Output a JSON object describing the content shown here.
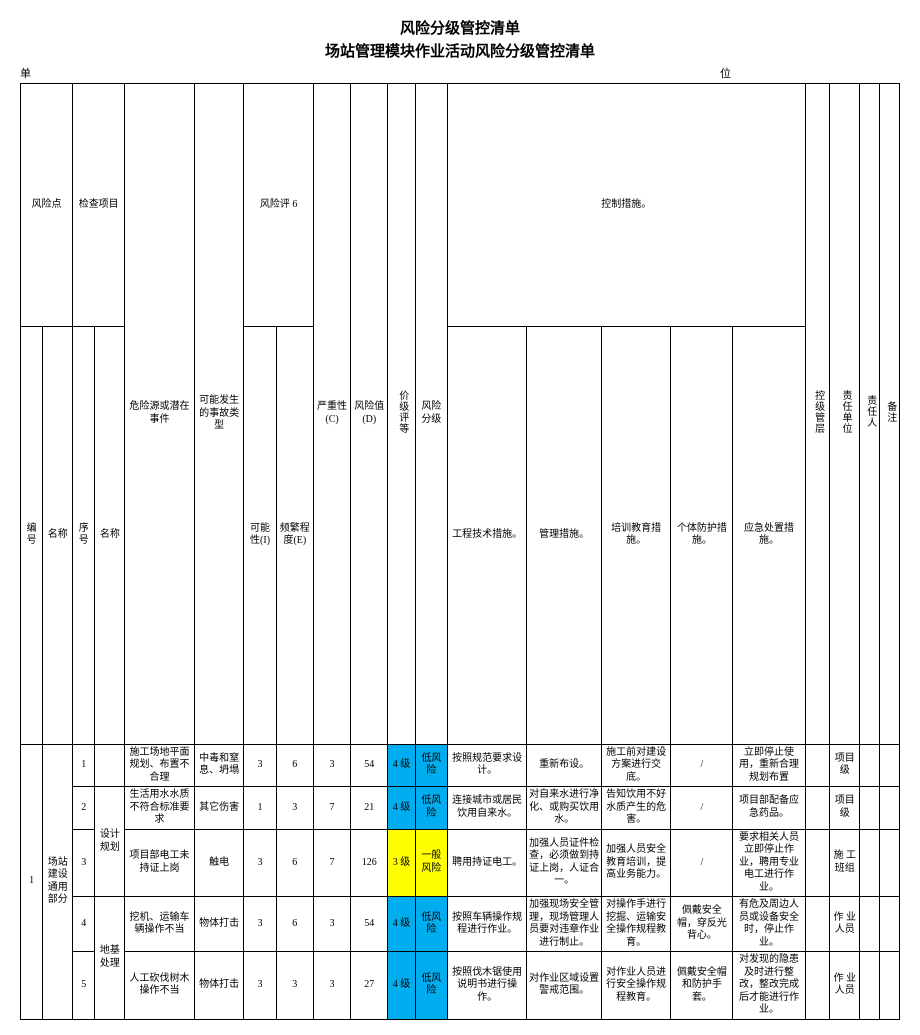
{
  "titles": {
    "main": "风险分级管控清单",
    "sub": "场站管理模块作业活动风险分级管控清单"
  },
  "meta": {
    "left": "单",
    "right": "位"
  },
  "headers": {
    "risk_point": "风险点",
    "check_item": "检查项目",
    "id": "编号",
    "name": "名称",
    "seq": "序号",
    "chk_name": "名称",
    "hazard": "危险源或潜在事件",
    "accident": "可能发生的事故类型",
    "eval_group": "风险评 6",
    "I": "可能性(I)",
    "E": "频繁程度(E)",
    "C": "严重性(C)",
    "D": "风险值(D)",
    "level": "价级评等",
    "grade": "风险分级",
    "ctrl_group": "控制措施。",
    "m1": "工程技术措施。",
    "m2": "管理措施。",
    "m3": "培训教育措施。",
    "m4": "个体防护措施。",
    "m5": "应急处置措施。",
    "ctrl_level": "控级管层",
    "resp_unit": "责任单位",
    "resp_person": "责任人",
    "note": "备注"
  },
  "group": {
    "id": "1",
    "name": "场站建设通用部分"
  },
  "sub1": {
    "name": "设计规划"
  },
  "sub2": {
    "name": "地基处理"
  },
  "rows": [
    {
      "seq": "1",
      "hazard": "施工场地平面规划、布置不合理",
      "accident": "中毒和窒息、坍塌",
      "I": "3",
      "E": "6",
      "C": "3",
      "D": "54",
      "level": "4 级",
      "grade": "低风险",
      "lvlCls": "blue",
      "grdCls": "blue",
      "m1": "按照规范要求设计。",
      "m2": "重新布设。",
      "m3": "施工前对建设方案进行交底。",
      "m4": "/",
      "m5": "立即停止使用，重新合理规划布置",
      "unit": "项目级"
    },
    {
      "seq": "2",
      "hazard": "生活用水水质不符合标准要求",
      "accident": "其它伤害",
      "I": "1",
      "E": "3",
      "C": "7",
      "D": "21",
      "level": "4 级",
      "grade": "低风险",
      "lvlCls": "blue",
      "grdCls": "blue",
      "m1": "连接城市或居民饮用自来水。",
      "m2": "对自来水进行净化、或购买饮用水。",
      "m3": "告知饮用不好水质产生的危害。",
      "m4": "/",
      "m5": "项目部配备应急药品。",
      "unit": "项目级"
    },
    {
      "seq": "3",
      "hazard": "项目部电工未持证上岗",
      "accident": "触电",
      "I": "3",
      "E": "6",
      "C": "7",
      "D": "126",
      "level": "3 级",
      "grade": "一般风险",
      "lvlCls": "yellow",
      "grdCls": "yellow",
      "m1": "聘用持证电工。",
      "m2": "加强人员证件检查，必须做到持证上岗，人证合一。",
      "m3": "加强人员安全教育培训，提高业务能力。",
      "m4": "/",
      "m5": "要求相关人员立即停止作业，聘用专业电工进行作业。",
      "unit": "施 工班组"
    },
    {
      "seq": "4",
      "hazard": "挖机、运输车辆操作不当",
      "accident": "物体打击",
      "I": "3",
      "E": "6",
      "C": "3",
      "D": "54",
      "level": "4 级",
      "grade": "低风险",
      "lvlCls": "blue",
      "grdCls": "blue",
      "m1": "按照车辆操作规程进行作业。",
      "m2": "加强现场安全管理，现场管理人员要对违章作业进行制止。",
      "m3": "对操作手进行挖掘、运输安全操作规程教育。",
      "m4": "佩戴安全帽，穿反光背心。",
      "m5": "有危及周边人员或设备安全时，停止作业。",
      "unit": "作 业人员"
    },
    {
      "seq": "5",
      "hazard": "人工砍伐树木操作不当",
      "accident": "物体打击",
      "I": "3",
      "E": "3",
      "C": "3",
      "D": "27",
      "level": "4 级",
      "grade": "低风险",
      "lvlCls": "blue",
      "grdCls": "blue",
      "m1": "按照伐木锯使用说明书进行操作。",
      "m2": "对作业区域设置警戒范围。",
      "m3": "对作业人员进行安全操作规程教育。",
      "m4": "佩戴安全帽和防护手套。",
      "m5": "对发现的隐患及时进行整改，整改完成后才能进行作业。",
      "unit": "作 业人员"
    }
  ]
}
